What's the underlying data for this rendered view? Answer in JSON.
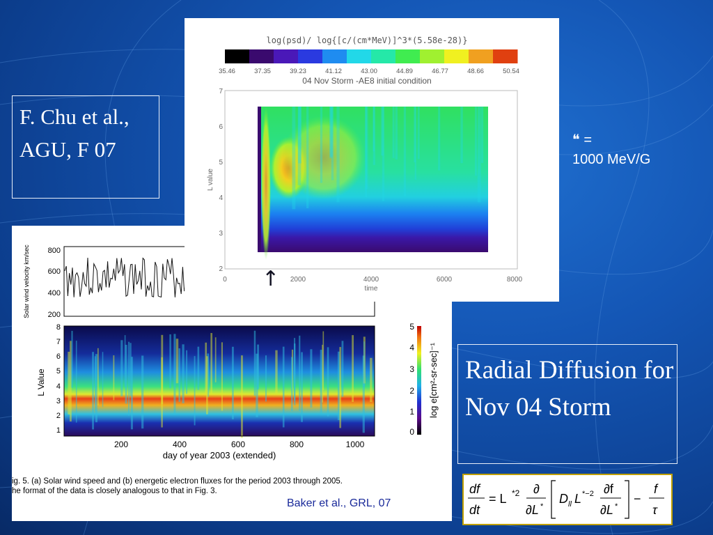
{
  "slide": {
    "citation_chu": "F. Chu et al.,  AGU, F 07",
    "mu_symbol": "❝",
    "mu_equals": "=",
    "mu_value": "1000 MeV/G",
    "title_box": "Radial Diffusion for Nov 04 Storm",
    "citation_baker": "Baker et al., GRL, 07",
    "arrow_glyph": "↑"
  },
  "sim_plot": {
    "colorbar_title": "log(psd)/ log{[c/(cm*MeV)]^3*(5.58e-28)}",
    "colorbar_ticks": [
      "35.46",
      "37.35",
      "39.23",
      "41.12",
      "43.00",
      "44.89",
      "46.77",
      "48.66",
      "50.54"
    ],
    "subtitle": "04 Nov Storm  -AE8 initial condition",
    "ylabel": "L value",
    "yticks": [
      "7",
      "6",
      "5",
      "4",
      "3",
      "2"
    ],
    "xlabel": "time",
    "xticks": [
      "0",
      "2000",
      "4000",
      "6000",
      "8000"
    ],
    "colors": [
      "#000000",
      "#3a0a6e",
      "#4a18b8",
      "#2a3ae0",
      "#1f8cf0",
      "#22d8e8",
      "#25e8a8",
      "#40ec50",
      "#a0f030",
      "#f0f020",
      "#f0a020",
      "#e04010"
    ]
  },
  "obs_plot": {
    "panel_a_ylabel": "Solar wind velocity km/sec",
    "panel_a_yticks": [
      "800",
      "600",
      "400",
      "200"
    ],
    "panel_b_ylabel": "L Value",
    "panel_b_yticks": [
      "8",
      "7",
      "6",
      "5",
      "4",
      "3",
      "2",
      "1"
    ],
    "xticks": [
      "200",
      "400",
      "600",
      "800",
      "1000"
    ],
    "xlabel": "day of year 2003 (extended)",
    "cbar_label": "log e[cm²-sr-sec]⁻¹",
    "cbar_ticks": [
      "5",
      "4",
      "3",
      "2",
      "1",
      "0"
    ],
    "caption_line1": "ig. 5. (a) Solar wind speed and (b) energetic electron fluxes for the period 2003 through 2005.",
    "caption_line2": "he format of the data is closely analogous to that in Fig. 3."
  },
  "equation": {
    "lhs_num": "df",
    "lhs_den": "dt",
    "eq": "= L",
    "sup1": "*2",
    "d_num": "∂",
    "d_den": "∂L",
    "d_den_sup": "*",
    "dll": "D",
    "dll_sub": "ll",
    "l2": "L",
    "l2_sup": "*−2",
    "df_num": "∂f",
    "df_den": "∂L",
    "df_den_sup": "*",
    "minus": "−",
    "f_num": "f",
    "tau": "τ"
  }
}
